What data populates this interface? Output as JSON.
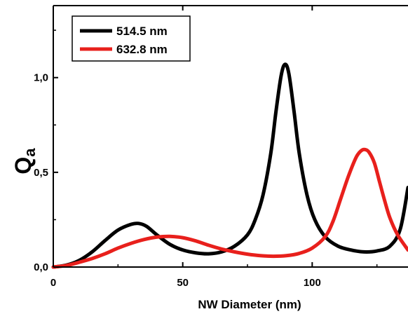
{
  "chart_data": {
    "type": "line",
    "title": "",
    "xlabel": "NW Diameter (nm)",
    "ylabel_main": "Q",
    "ylabel_sub": "a",
    "xlim": [
      0,
      137
    ],
    "ylim": [
      0,
      1.38
    ],
    "x_ticks": [
      0,
      50,
      100
    ],
    "x_tick_labels": [
      "0",
      "50",
      "100"
    ],
    "y_ticks": [
      0,
      0.5,
      1.0
    ],
    "y_tick_labels": [
      "0,0",
      "0,5",
      "1,0"
    ],
    "grid": false,
    "legend_position": "top-left",
    "series": [
      {
        "name": "514.5 nm",
        "color": "#000000",
        "x": [
          0,
          5,
          10,
          15,
          20,
          25,
          30,
          33,
          36,
          40,
          45,
          50,
          55,
          60,
          65,
          70,
          75,
          78,
          81,
          84,
          86,
          88,
          89.5,
          91,
          93,
          95,
          98,
          101,
          105,
          110,
          115,
          120,
          125,
          130,
          134,
          137
        ],
        "y": [
          0.0,
          0.01,
          0.035,
          0.08,
          0.14,
          0.195,
          0.225,
          0.23,
          0.215,
          0.17,
          0.12,
          0.09,
          0.075,
          0.07,
          0.08,
          0.11,
          0.17,
          0.25,
          0.38,
          0.6,
          0.82,
          1.01,
          1.07,
          1.02,
          0.82,
          0.6,
          0.38,
          0.25,
          0.16,
          0.11,
          0.09,
          0.08,
          0.085,
          0.11,
          0.2,
          0.42
        ]
      },
      {
        "name": "632.8 nm",
        "color": "#e8201c",
        "x": [
          0,
          5,
          10,
          15,
          20,
          25,
          30,
          35,
          40,
          45,
          50,
          55,
          60,
          65,
          70,
          75,
          80,
          85,
          90,
          95,
          100,
          105,
          108,
          111,
          114,
          117,
          119,
          120.5,
          122,
          124,
          126,
          128,
          130,
          133,
          137
        ],
        "y": [
          0.0,
          0.008,
          0.025,
          0.045,
          0.07,
          0.1,
          0.125,
          0.145,
          0.158,
          0.162,
          0.155,
          0.138,
          0.115,
          0.095,
          0.08,
          0.068,
          0.06,
          0.057,
          0.06,
          0.072,
          0.1,
          0.16,
          0.24,
          0.36,
          0.48,
          0.58,
          0.615,
          0.62,
          0.605,
          0.55,
          0.45,
          0.35,
          0.26,
          0.17,
          0.09
        ]
      }
    ]
  }
}
